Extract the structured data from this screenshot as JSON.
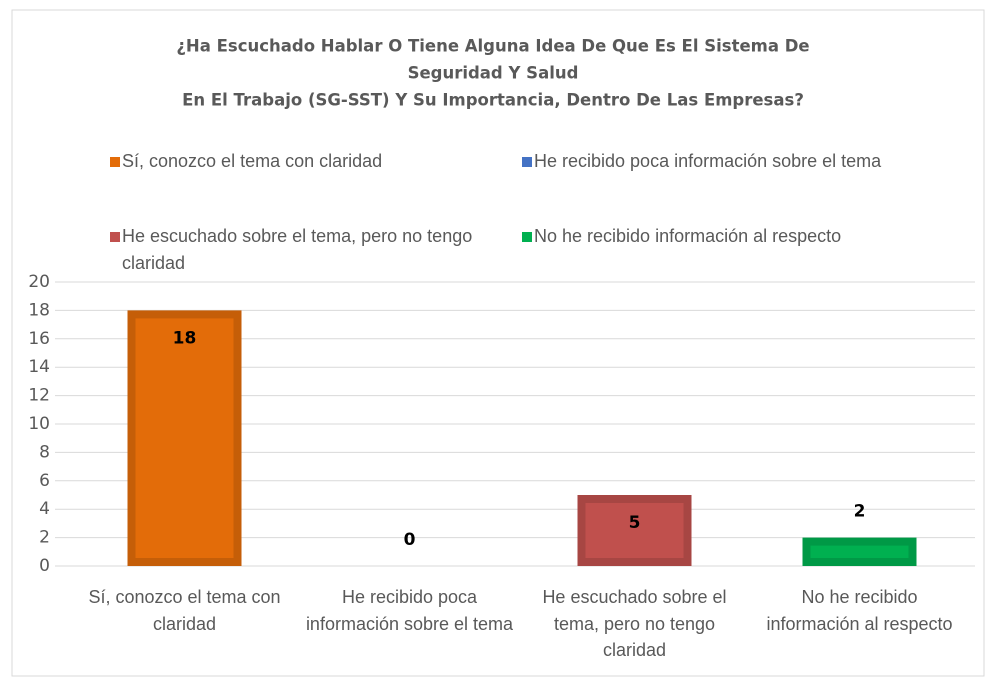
{
  "chart_data": {
    "type": "bar",
    "title": [
      "¿Ha Escuchado Hablar O Tiene Alguna Idea De Que Es El Sistema De",
      "Seguridad Y Salud",
      "En El Trabajo (SG-SST) Y Su Importancia, Dentro De Las Empresas?"
    ],
    "categories": [
      "Sí, conozco el tema con claridad",
      "He recibido poca información sobre el tema",
      "He escuchado sobre el tema, pero no tengo claridad",
      "No he recibido información al respecto"
    ],
    "values": [
      18,
      0,
      5,
      2
    ],
    "colors": [
      "#e36c09",
      "#4472c4",
      "#c0504d",
      "#00b050"
    ],
    "ylim": [
      0,
      20
    ],
    "yticks": [
      0,
      2,
      4,
      6,
      8,
      10,
      12,
      14,
      16,
      18,
      20
    ],
    "grid": true
  }
}
